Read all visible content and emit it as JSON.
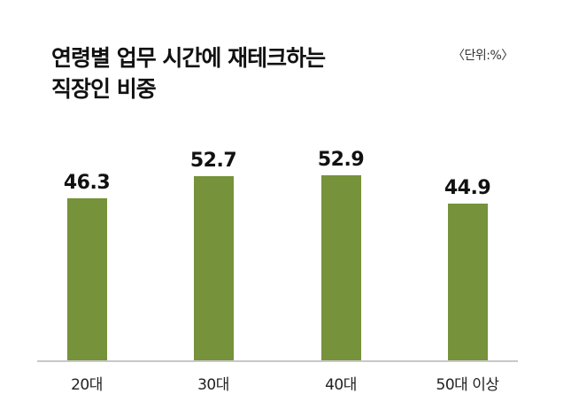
{
  "header": {
    "title_line1": "연령별 업무 시간에 재테크하는",
    "title_line2": "직장인 비중",
    "unit": "〈단위:%〉"
  },
  "colors": {
    "bar": "#76923a",
    "axis": "#c8c8c8"
  },
  "chart_data": {
    "type": "bar",
    "title": "연령별 업무 시간에 재테크하는 직장인 비중",
    "unit": "%",
    "categories": [
      "20대",
      "30대",
      "40대",
      "50대 이상"
    ],
    "values": [
      46.3,
      52.7,
      52.9,
      44.9
    ],
    "value_labels": [
      "46.3",
      "52.7",
      "52.9",
      "44.9"
    ],
    "xlabel": "",
    "ylabel": "",
    "grid": false,
    "legend": "none"
  }
}
